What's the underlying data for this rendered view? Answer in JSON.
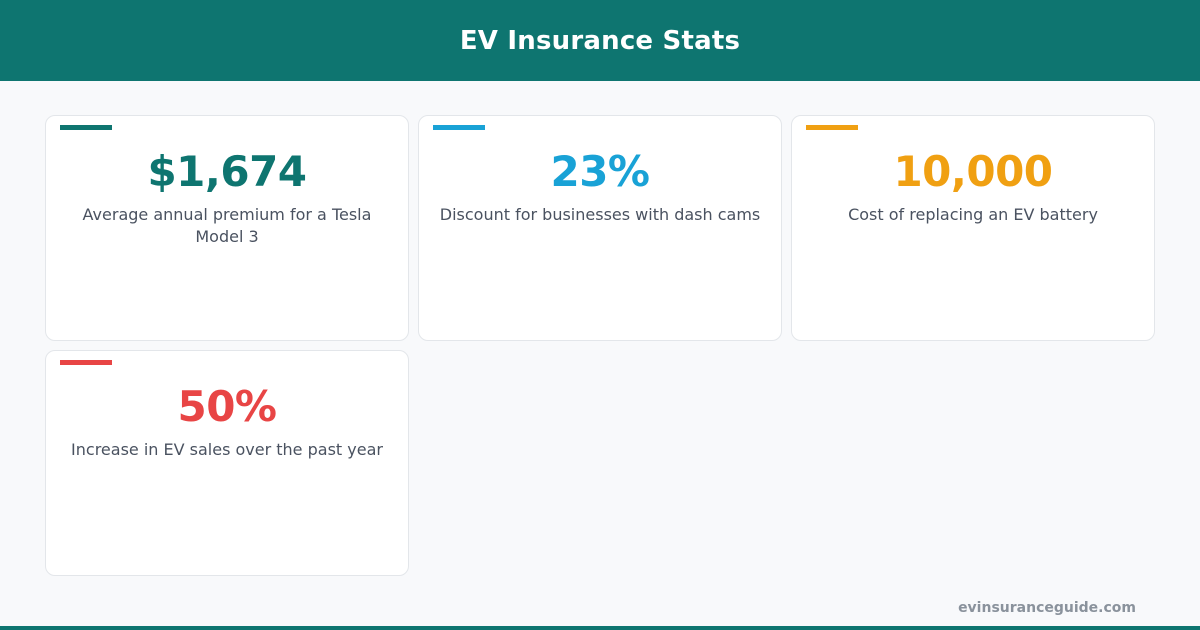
{
  "header": {
    "title": "EV Insurance Stats"
  },
  "stats": [
    {
      "value": "$1,674",
      "label": "Average annual premium for a Tesla Model 3",
      "color": "#0e7570"
    },
    {
      "value": "23%",
      "label": "Discount for businesses with dash cams",
      "color": "#19a2d6"
    },
    {
      "value": "10,000",
      "label": "Cost of replacing an EV battery",
      "color": "#f0a012"
    },
    {
      "value": "50%",
      "label": "Increase in EV sales over the past year",
      "color": "#e84545"
    }
  ],
  "footer": {
    "site": "evinsuranceguide.com"
  }
}
